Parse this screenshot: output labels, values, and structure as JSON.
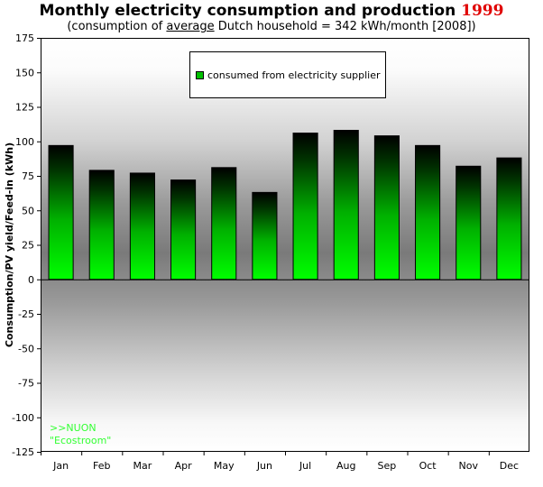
{
  "chart_data": {
    "type": "bar",
    "title_main": "Monthly electricity consumption and production ",
    "title_year": "1999",
    "subtitle_prefix": "(consumption of ",
    "subtitle_underlined": "average",
    "subtitle_suffix": " Dutch household = 342 kWh/month [2008])",
    "ylabel": "Consumption/PV yield/Feed-in (kWh)",
    "xlabel": "",
    "ylim": [
      -125,
      175
    ],
    "ytick_step": 25,
    "yticks": [
      "175",
      "150",
      "125",
      "100",
      "75",
      "50",
      "25",
      "0",
      "-25",
      "-50",
      "-75",
      "-100",
      "-125"
    ],
    "categories": [
      "Jan",
      "Feb",
      "Mar",
      "Apr",
      "May",
      "Jun",
      "Jul",
      "Aug",
      "Sep",
      "Oct",
      "Nov",
      "Dec"
    ],
    "series": [
      {
        "name": "consumed from electricity supplier",
        "values": [
          97,
          79,
          77,
          72,
          81,
          63,
          106,
          108,
          104,
          97,
          82,
          88
        ]
      }
    ],
    "legend_position": "top-center",
    "grid": false,
    "annotation_line1": ">>NUON",
    "annotation_line2": "\"Ecostroom\"",
    "colors": {
      "bar_top": "#000000",
      "bar_bottom": "#00ff00",
      "legend_swatch": "#00c000",
      "title_year": "#e00000",
      "annotation": "#33ff33",
      "plot_bg_edge": "#ffffff",
      "plot_bg_center": "#7a7a7a"
    }
  }
}
